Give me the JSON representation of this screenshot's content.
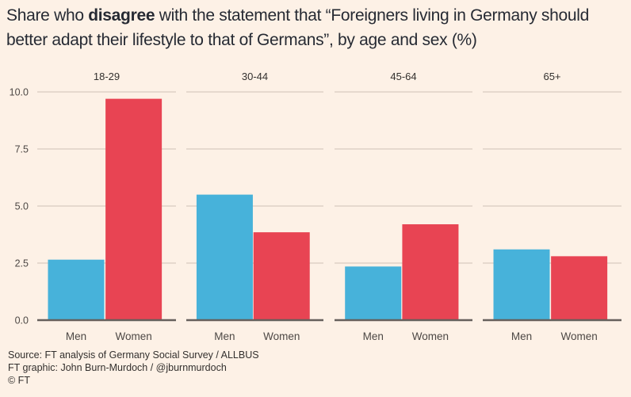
{
  "title": {
    "prefix": "Share who ",
    "bold": "disagree",
    "suffix": " with the statement that “Foreigners living in Germany should better adapt their lifestyle to that of Germans”, by age and sex (%)"
  },
  "colors": {
    "background": "#fdf1e6",
    "men": "#47b2da",
    "women": "#e84453",
    "gridline": "#e6d9ce",
    "baseline": "#66605c"
  },
  "chart_data": {
    "type": "bar",
    "title": "Share who disagree with the statement that “Foreigners living in Germany should better adapt their lifestyle to that of Germans”, by age and sex (%)",
    "xlabel": "",
    "ylabel": "",
    "ylim": [
      0,
      10
    ],
    "yticks": [
      "0.0",
      "2.5",
      "5.0",
      "7.5",
      "10.0"
    ],
    "ytick_values": [
      0,
      2.5,
      5,
      7.5,
      10
    ],
    "grid": true,
    "legend": "none",
    "panels": [
      "18-29",
      "30-44",
      "45-64",
      "65+"
    ],
    "categories": [
      "Men",
      "Women"
    ],
    "series": [
      {
        "name": "Men",
        "values": [
          2.65,
          5.5,
          2.35,
          3.1
        ]
      },
      {
        "name": "Women",
        "values": [
          9.7,
          3.85,
          4.2,
          2.8
        ]
      }
    ]
  },
  "footer": {
    "source": "Source: FT analysis of Germany Social Survey / ALLBUS",
    "graphic": "FT graphic: John Burn-Murdoch / @jburnmurdoch",
    "copyright": "© FT"
  }
}
